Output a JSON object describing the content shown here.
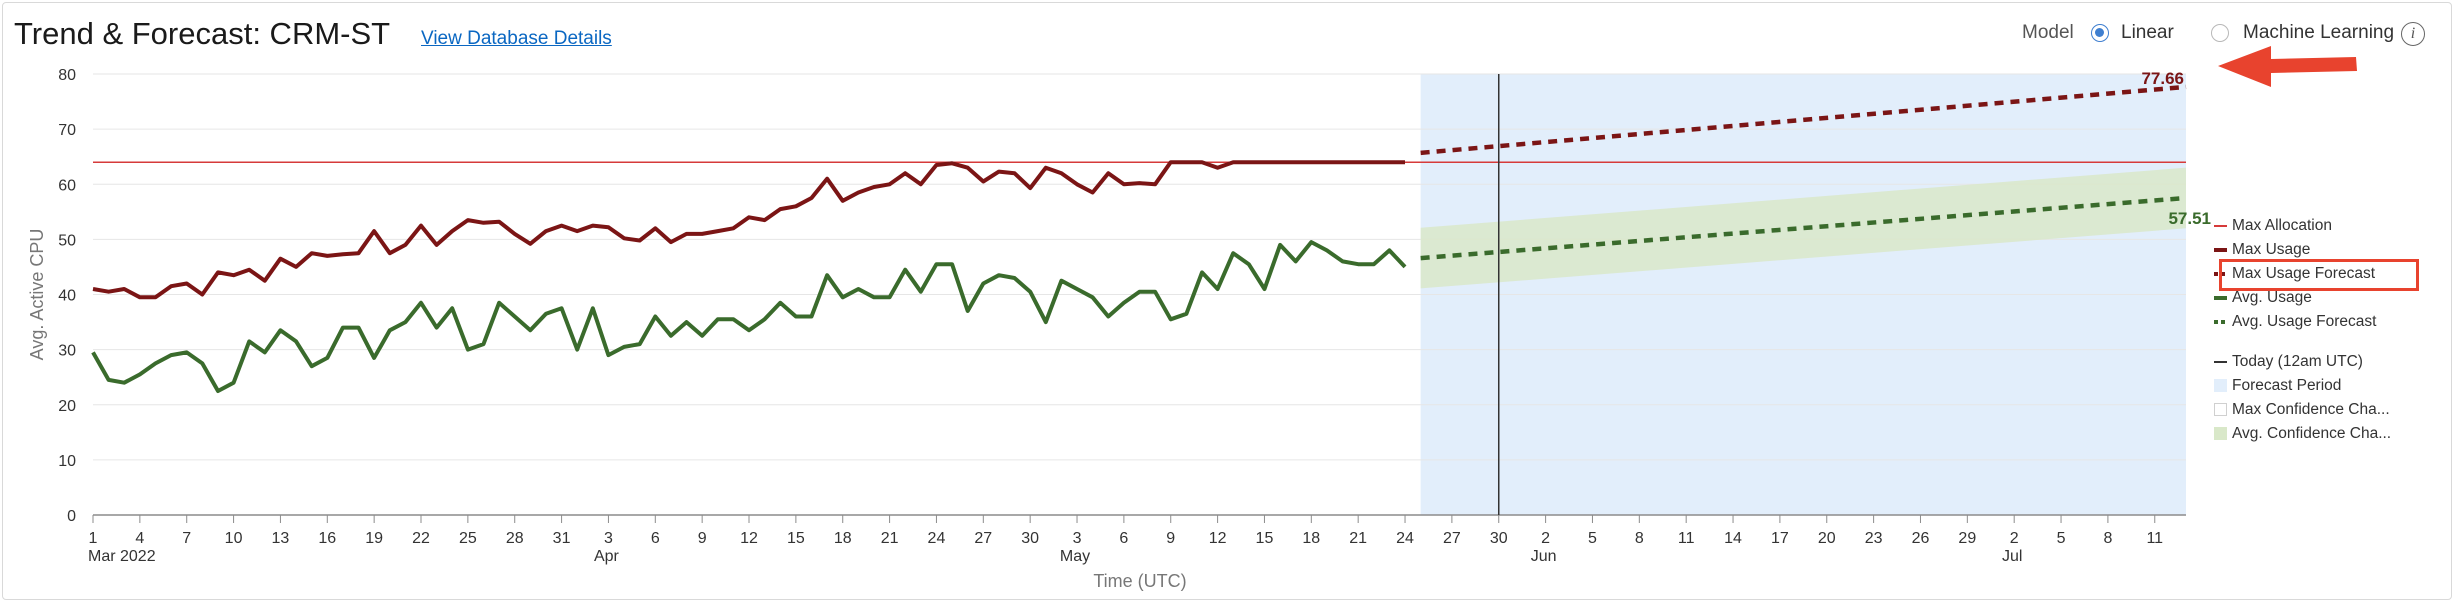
{
  "header": {
    "title": "Trend & Forecast: CRM-ST",
    "link_text": "View Database Details"
  },
  "model": {
    "label": "Model",
    "options": [
      {
        "label": "Linear",
        "selected": true
      },
      {
        "label": "Machine Learning",
        "selected": false
      }
    ],
    "info_icon": "info-icon"
  },
  "colors": {
    "max": "#7b1515",
    "avg": "#3a6b2c",
    "allocation": "#d63a3a",
    "forecast_bg": "#e2eefb",
    "avg_band": "#d9e8c9",
    "annotation": "#e8432e"
  },
  "legend": [
    {
      "label": "Max Allocation"
    },
    {
      "label": "Max Usage"
    },
    {
      "label": "Max Usage Forecast"
    },
    {
      "label": "Avg. Usage"
    },
    {
      "label": "Avg. Usage Forecast"
    },
    {
      "label": "Today (12am UTC)"
    },
    {
      "label": "Forecast Period"
    },
    {
      "label": "Max Confidence Cha..."
    },
    {
      "label": "Avg. Confidence Cha..."
    }
  ],
  "chart_data": {
    "type": "line",
    "xlabel": "Time (UTC)",
    "ylabel": "Avg. Active CPU",
    "ylim": [
      0,
      80
    ],
    "yticks": [
      "0",
      "10",
      "20",
      "30",
      "40",
      "50",
      "60",
      "70",
      "80"
    ],
    "x_start": "2022-03-01",
    "xticks": [
      {
        "date": "2022-03-01",
        "label": "1",
        "sub": "Mar 2022"
      },
      {
        "date": "2022-03-04",
        "label": "4"
      },
      {
        "date": "2022-03-07",
        "label": "7"
      },
      {
        "date": "2022-03-10",
        "label": "10"
      },
      {
        "date": "2022-03-13",
        "label": "13"
      },
      {
        "date": "2022-03-16",
        "label": "16"
      },
      {
        "date": "2022-03-19",
        "label": "19"
      },
      {
        "date": "2022-03-22",
        "label": "22"
      },
      {
        "date": "2022-03-25",
        "label": "25"
      },
      {
        "date": "2022-03-28",
        "label": "28"
      },
      {
        "date": "2022-03-31",
        "label": "31"
      },
      {
        "date": "2022-04-03",
        "label": "3",
        "sub": "Apr"
      },
      {
        "date": "2022-04-06",
        "label": "6"
      },
      {
        "date": "2022-04-09",
        "label": "9"
      },
      {
        "date": "2022-04-12",
        "label": "12"
      },
      {
        "date": "2022-04-15",
        "label": "15"
      },
      {
        "date": "2022-04-18",
        "label": "18"
      },
      {
        "date": "2022-04-21",
        "label": "21"
      },
      {
        "date": "2022-04-24",
        "label": "24"
      },
      {
        "date": "2022-04-27",
        "label": "27"
      },
      {
        "date": "2022-04-30",
        "label": "30"
      },
      {
        "date": "2022-05-03",
        "label": "3",
        "sub": "May"
      },
      {
        "date": "2022-05-06",
        "label": "6"
      },
      {
        "date": "2022-05-09",
        "label": "9"
      },
      {
        "date": "2022-05-12",
        "label": "12"
      },
      {
        "date": "2022-05-15",
        "label": "15"
      },
      {
        "date": "2022-05-18",
        "label": "18"
      },
      {
        "date": "2022-05-21",
        "label": "21"
      },
      {
        "date": "2022-05-24",
        "label": "24"
      },
      {
        "date": "2022-05-27",
        "label": "27"
      },
      {
        "date": "2022-05-30",
        "label": "30"
      },
      {
        "date": "2022-06-02",
        "label": "2",
        "sub": "Jun"
      },
      {
        "date": "2022-06-05",
        "label": "5"
      },
      {
        "date": "2022-06-08",
        "label": "8"
      },
      {
        "date": "2022-06-11",
        "label": "11"
      },
      {
        "date": "2022-06-14",
        "label": "14"
      },
      {
        "date": "2022-06-17",
        "label": "17"
      },
      {
        "date": "2022-06-20",
        "label": "20"
      },
      {
        "date": "2022-06-23",
        "label": "23"
      },
      {
        "date": "2022-06-26",
        "label": "26"
      },
      {
        "date": "2022-06-29",
        "label": "29"
      },
      {
        "date": "2022-07-02",
        "label": "2",
        "sub": "Jul"
      },
      {
        "date": "2022-07-05",
        "label": "5"
      },
      {
        "date": "2022-07-08",
        "label": "8"
      },
      {
        "date": "2022-07-11",
        "label": "11"
      }
    ],
    "max_allocation": 64,
    "usage_start": "2022-03-01",
    "max_usage": [
      41,
      40.5,
      41,
      39.5,
      39.5,
      41.5,
      42,
      40,
      44,
      43.5,
      44.5,
      42.5,
      46.5,
      45,
      47.5,
      47,
      47.3,
      47.5,
      51.5,
      47.5,
      49,
      52.5,
      49,
      51.5,
      53.5,
      53,
      53.2,
      51,
      49.2,
      51.5,
      52.5,
      51.5,
      52.5,
      52.2,
      50.2,
      49.8,
      52,
      49.5,
      51,
      51,
      51.5,
      52,
      54,
      53.5,
      55.5,
      56,
      57.5,
      61,
      57,
      58.5,
      59.5,
      60,
      62,
      60,
      63.5,
      63.8,
      63,
      60.5,
      62.3,
      62,
      59.3,
      63,
      62,
      60,
      58.5,
      62,
      60,
      60.2,
      60,
      64,
      64,
      64,
      63,
      64,
      64,
      64,
      64,
      64,
      64,
      64,
      64,
      64,
      64,
      64,
      64
    ],
    "avg_usage": [
      29.5,
      24.5,
      24,
      25.5,
      27.5,
      29,
      29.5,
      27.5,
      22.5,
      24,
      31.5,
      29.5,
      33.5,
      31.5,
      27,
      28.5,
      34,
      34,
      28.5,
      33.5,
      35,
      38.5,
      34,
      37.5,
      30,
      31,
      38.5,
      36,
      33.5,
      36.5,
      37.5,
      30,
      37.5,
      29,
      30.5,
      31,
      36,
      32.5,
      35,
      32.5,
      35.5,
      35.5,
      33.5,
      35.5,
      38.5,
      36,
      36,
      43.5,
      39.5,
      41,
      39.5,
      39.5,
      44.5,
      40.5,
      45.5,
      45.5,
      37,
      42,
      43.5,
      43,
      40.5,
      35,
      42.5,
      41,
      39.5,
      36,
      38.5,
      40.5,
      40.5,
      35.5,
      36.5,
      44,
      41,
      47.5,
      45.5,
      41,
      49,
      46,
      49.5,
      48,
      46,
      45.5,
      45.5,
      48,
      45
    ],
    "forecast_start": "2022-05-25",
    "forecast_end": "2022-07-13",
    "today": "2022-05-30",
    "max_forecast": {
      "start": 65.7,
      "end": 77.66
    },
    "avg_forecast": {
      "start": 46.6,
      "end": 57.51
    },
    "avg_band_halfwidth": 5.5,
    "end_labels": {
      "max": "77.66",
      "avg": "57.51"
    }
  }
}
